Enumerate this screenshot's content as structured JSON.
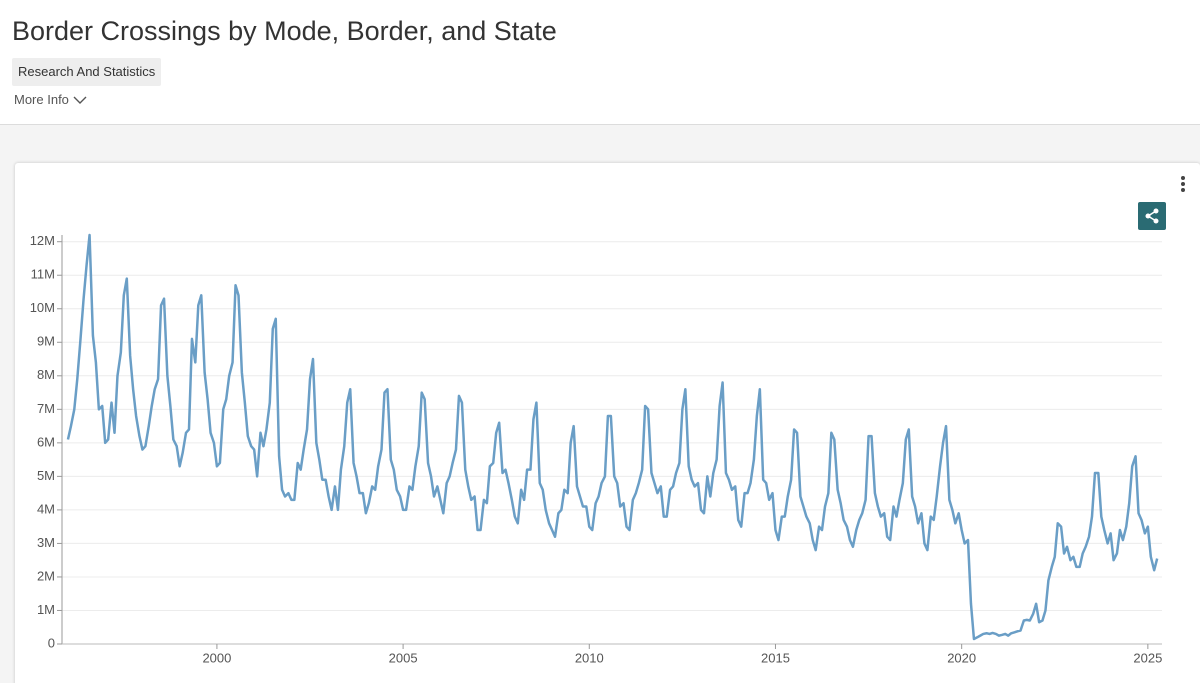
{
  "header": {
    "title": "Border Crossings by Mode, Border, and State",
    "tag": "Research And Statistics",
    "more_info": "More Info"
  },
  "chart_data": {
    "type": "line",
    "color": "#6a9ec6",
    "x": [
      1996,
      1996.08,
      1996.17,
      1996.25,
      1996.33,
      1996.42,
      1996.5,
      1996.58,
      1996.67,
      1996.75,
      1996.83,
      1996.92,
      1997,
      1997.08,
      1997.17,
      1997.25,
      1997.33,
      1997.42,
      1997.5,
      1997.58,
      1997.67,
      1997.75,
      1997.83,
      1997.92,
      1998,
      1998.08,
      1998.17,
      1998.25,
      1998.33,
      1998.42,
      1998.5,
      1998.58,
      1998.67,
      1998.75,
      1998.83,
      1998.92,
      1999,
      1999.08,
      1999.17,
      1999.25,
      1999.33,
      1999.42,
      1999.5,
      1999.58,
      1999.67,
      1999.75,
      1999.83,
      1999.92,
      2000,
      2000.08,
      2000.17,
      2000.25,
      2000.33,
      2000.42,
      2000.5,
      2000.58,
      2000.67,
      2000.75,
      2000.83,
      2000.92,
      2001,
      2001.08,
      2001.17,
      2001.25,
      2001.33,
      2001.42,
      2001.5,
      2001.58,
      2001.67,
      2001.75,
      2001.83,
      2001.92,
      2002,
      2002.08,
      2002.17,
      2002.25,
      2002.33,
      2002.42,
      2002.5,
      2002.58,
      2002.67,
      2002.75,
      2002.83,
      2002.92,
      2003,
      2003.08,
      2003.17,
      2003.25,
      2003.33,
      2003.42,
      2003.5,
      2003.58,
      2003.67,
      2003.75,
      2003.83,
      2003.92,
      2004,
      2004.08,
      2004.17,
      2004.25,
      2004.33,
      2004.42,
      2004.5,
      2004.58,
      2004.67,
      2004.75,
      2004.83,
      2004.92,
      2005,
      2005.08,
      2005.17,
      2005.25,
      2005.33,
      2005.42,
      2005.5,
      2005.58,
      2005.67,
      2005.75,
      2005.83,
      2005.92,
      2006,
      2006.08,
      2006.17,
      2006.25,
      2006.33,
      2006.42,
      2006.5,
      2006.58,
      2006.67,
      2006.75,
      2006.83,
      2006.92,
      2007,
      2007.08,
      2007.17,
      2007.25,
      2007.33,
      2007.42,
      2007.5,
      2007.58,
      2007.67,
      2007.75,
      2007.83,
      2007.92,
      2008,
      2008.08,
      2008.17,
      2008.25,
      2008.33,
      2008.42,
      2008.5,
      2008.58,
      2008.67,
      2008.75,
      2008.83,
      2008.92,
      2009,
      2009.08,
      2009.17,
      2009.25,
      2009.33,
      2009.42,
      2009.5,
      2009.58,
      2009.67,
      2009.75,
      2009.83,
      2009.92,
      2010,
      2010.08,
      2010.17,
      2010.25,
      2010.33,
      2010.42,
      2010.5,
      2010.58,
      2010.67,
      2010.75,
      2010.83,
      2010.92,
      2011,
      2011.08,
      2011.17,
      2011.25,
      2011.33,
      2011.42,
      2011.5,
      2011.58,
      2011.67,
      2011.75,
      2011.83,
      2011.92,
      2012,
      2012.08,
      2012.17,
      2012.25,
      2012.33,
      2012.42,
      2012.5,
      2012.58,
      2012.67,
      2012.75,
      2012.83,
      2012.92,
      2013,
      2013.08,
      2013.17,
      2013.25,
      2013.33,
      2013.42,
      2013.5,
      2013.58,
      2013.67,
      2013.75,
      2013.83,
      2013.92,
      2014,
      2014.08,
      2014.17,
      2014.25,
      2014.33,
      2014.42,
      2014.5,
      2014.58,
      2014.67,
      2014.75,
      2014.83,
      2014.92,
      2015,
      2015.08,
      2015.17,
      2015.25,
      2015.33,
      2015.42,
      2015.5,
      2015.58,
      2015.67,
      2015.75,
      2015.83,
      2015.92,
      2016,
      2016.08,
      2016.17,
      2016.25,
      2016.33,
      2016.42,
      2016.5,
      2016.58,
      2016.67,
      2016.75,
      2016.83,
      2016.92,
      2017,
      2017.08,
      2017.17,
      2017.25,
      2017.33,
      2017.42,
      2017.5,
      2017.58,
      2017.67,
      2017.75,
      2017.83,
      2017.92,
      2018,
      2018.08,
      2018.17,
      2018.25,
      2018.33,
      2018.42,
      2018.5,
      2018.58,
      2018.67,
      2018.75,
      2018.83,
      2018.92,
      2019,
      2019.08,
      2019.17,
      2019.25,
      2019.33,
      2019.42,
      2019.5,
      2019.58,
      2019.67,
      2019.75,
      2019.83,
      2019.92,
      2020,
      2020.08,
      2020.17,
      2020.25,
      2020.33,
      2020.42,
      2020.5,
      2020.58,
      2020.67,
      2020.75,
      2020.83,
      2020.92,
      2021,
      2021.08,
      2021.17,
      2021.25,
      2021.33,
      2021.42,
      2021.5,
      2021.58,
      2021.67,
      2021.75,
      2021.83,
      2021.92,
      2022,
      2022.08,
      2022.17,
      2022.25,
      2022.33,
      2022.42,
      2022.5,
      2022.58,
      2022.67,
      2022.75,
      2022.83,
      2022.92,
      2023,
      2023.08,
      2023.17,
      2023.25,
      2023.33,
      2023.42,
      2023.5,
      2023.58,
      2023.67,
      2023.75,
      2023.83,
      2023.92,
      2024,
      2024.08,
      2024.17,
      2024.25,
      2024.33,
      2024.42,
      2024.5,
      2024.58,
      2024.67,
      2024.75,
      2024.83,
      2024.92,
      2025,
      2025.08,
      2025.17,
      2025.25
    ],
    "values": [
      6100000,
      6500000,
      7000000,
      7900000,
      9000000,
      10300000,
      11300000,
      12200000,
      9200000,
      8400000,
      7000000,
      7100000,
      6000000,
      6100000,
      7200000,
      6300000,
      8000000,
      8700000,
      10400000,
      10900000,
      8600000,
      7600000,
      6800000,
      6200000,
      5800000,
      5900000,
      6500000,
      7100000,
      7600000,
      7900000,
      10100000,
      10300000,
      8000000,
      7100000,
      6100000,
      5900000,
      5300000,
      5700000,
      6300000,
      6400000,
      9100000,
      8400000,
      10100000,
      10400000,
      8100000,
      7300000,
      6300000,
      6000000,
      5300000,
      5400000,
      7000000,
      7300000,
      8000000,
      8400000,
      10700000,
      10400000,
      8100000,
      7200000,
      6200000,
      5900000,
      5800000,
      5000000,
      6300000,
      5900000,
      6400000,
      7200000,
      9400000,
      9700000,
      5600000,
      4600000,
      4400000,
      4500000,
      4300000,
      4300000,
      5400000,
      5200000,
      5800000,
      6400000,
      7900000,
      8500000,
      6000000,
      5500000,
      4900000,
      4900000,
      4400000,
      4000000,
      4700000,
      4000000,
      5200000,
      5900000,
      7200000,
      7600000,
      5400000,
      5000000,
      4500000,
      4500000,
      3900000,
      4200000,
      4700000,
      4600000,
      5300000,
      5800000,
      7500000,
      7600000,
      5500000,
      5200000,
      4600000,
      4400000,
      4000000,
      4000000,
      4700000,
      4600000,
      5300000,
      5900000,
      7500000,
      7300000,
      5400000,
      5000000,
      4400000,
      4700000,
      4300000,
      3900000,
      4800000,
      5000000,
      5400000,
      5800000,
      7400000,
      7200000,
      5200000,
      4700000,
      4300000,
      4400000,
      3400000,
      3400000,
      4300000,
      4200000,
      5300000,
      5400000,
      6300000,
      6600000,
      5100000,
      5200000,
      4800000,
      4300000,
      3800000,
      3600000,
      4600000,
      4300000,
      5200000,
      5200000,
      6700000,
      7200000,
      4800000,
      4600000,
      4000000,
      3600000,
      3400000,
      3200000,
      3900000,
      4000000,
      4600000,
      4500000,
      6000000,
      6500000,
      4700000,
      4400000,
      4100000,
      4100000,
      3500000,
      3400000,
      4200000,
      4400000,
      4800000,
      5000000,
      6800000,
      6800000,
      5000000,
      4800000,
      4100000,
      4200000,
      3500000,
      3400000,
      4300000,
      4500000,
      4800000,
      5200000,
      7100000,
      7000000,
      5100000,
      4800000,
      4500000,
      4700000,
      3800000,
      3800000,
      4600000,
      4700000,
      5100000,
      5400000,
      7000000,
      7600000,
      5300000,
      4900000,
      4700000,
      4800000,
      4000000,
      3900000,
      5000000,
      4400000,
      5100000,
      5500000,
      7100000,
      7800000,
      5100000,
      4900000,
      4600000,
      4700000,
      3700000,
      3500000,
      4500000,
      4500000,
      4800000,
      5500000,
      6800000,
      7600000,
      4900000,
      4800000,
      4300000,
      4500000,
      3400000,
      3100000,
      3800000,
      3800000,
      4400000,
      4900000,
      6400000,
      6300000,
      4400000,
      4100000,
      3800000,
      3600000,
      3100000,
      2800000,
      3500000,
      3400000,
      4100000,
      4500000,
      6300000,
      6100000,
      4600000,
      4200000,
      3700000,
      3500000,
      3100000,
      2900000,
      3400000,
      3700000,
      3900000,
      4300000,
      6200000,
      6200000,
      4500000,
      4100000,
      3800000,
      3900000,
      3200000,
      3100000,
      4100000,
      3800000,
      4300000,
      4800000,
      6100000,
      6400000,
      4400000,
      4100000,
      3600000,
      3900000,
      3000000,
      2800000,
      3800000,
      3700000,
      4400000,
      5300000,
      6000000,
      6500000,
      4300000,
      4000000,
      3600000,
      3900000,
      3400000,
      3000000,
      3100000,
      1200000,
      150000,
      200000,
      250000,
      300000,
      320000,
      300000,
      330000,
      300000,
      250000,
      270000,
      300000,
      250000,
      320000,
      350000,
      380000,
      400000,
      700000,
      720000,
      700000,
      900000,
      1200000,
      650000,
      700000,
      1000000,
      1900000,
      2300000,
      2600000,
      3600000,
      3500000,
      2700000,
      2900000,
      2500000,
      2600000,
      2300000,
      2300000,
      2700000,
      2900000,
      3200000,
      3800000,
      5100000,
      5100000,
      3800000,
      3400000,
      3000000,
      3300000,
      2500000,
      2700000,
      3400000,
      3100000,
      3500000,
      4200000,
      5300000,
      5600000,
      3900000,
      3700000,
      3300000,
      3500000,
      2600000,
      2200000,
      2550000
    ],
    "xlim": [
      1995.84,
      2025.38
    ],
    "xticks": [
      2000,
      2005,
      2010,
      2015,
      2020,
      2025
    ],
    "ylim": [
      0,
      12200000
    ],
    "yticks": [
      0,
      {
        "value": 1000000,
        "label": "1M"
      },
      {
        "value": 2000000,
        "label": "2M"
      },
      {
        "value": 3000000,
        "label": "3M"
      },
      {
        "value": 4000000,
        "label": "4M"
      },
      {
        "value": 5000000,
        "label": "5M"
      },
      {
        "value": 6000000,
        "label": "6M"
      },
      {
        "value": 7000000,
        "label": "7M"
      },
      {
        "value": 8000000,
        "label": "8M"
      },
      {
        "value": 9000000,
        "label": "9M"
      },
      {
        "value": 10000000,
        "label": "10M"
      },
      {
        "value": 11000000,
        "label": "11M"
      },
      {
        "value": 12000000,
        "label": "12M"
      }
    ],
    "grid": true
  }
}
